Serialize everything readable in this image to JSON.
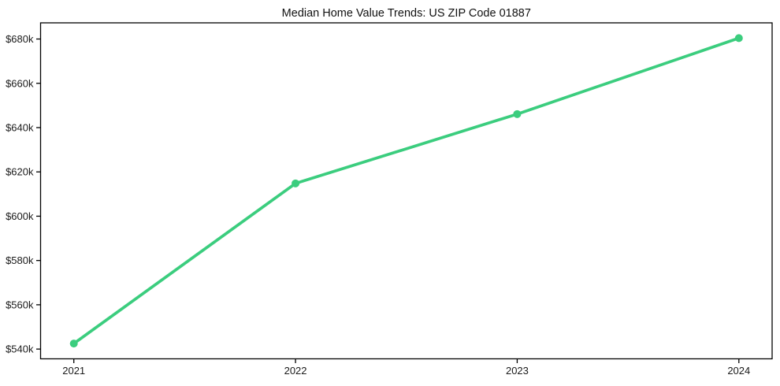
{
  "chart_data": {
    "type": "line",
    "title": "Median Home Value Trends: US ZIP Code 01887",
    "x": [
      2021,
      2022,
      2023,
      2024
    ],
    "series": [
      {
        "name": "Median Home Value",
        "values": [
          542500,
          614800,
          646100,
          680400
        ]
      }
    ],
    "x_tick_labels": [
      "2021",
      "2022",
      "2023",
      "2024"
    ],
    "y_ticks": [
      540000,
      560000,
      580000,
      600000,
      620000,
      640000,
      660000,
      680000
    ],
    "y_tick_labels": [
      "$540k",
      "$560k",
      "$580k",
      "$600k",
      "$620k",
      "$640k",
      "$660k",
      "$680k"
    ],
    "xlabel": "",
    "ylabel": "",
    "xlim": [
      2020.85,
      2024.15
    ],
    "ylim": [
      535600,
      687300
    ],
    "grid": false,
    "legend": "none",
    "colors": {
      "line": "#3bcd7e",
      "marker": "#3bcd7e",
      "axis": "#000000",
      "text": "#1a1a1a",
      "background": "#ffffff"
    }
  }
}
